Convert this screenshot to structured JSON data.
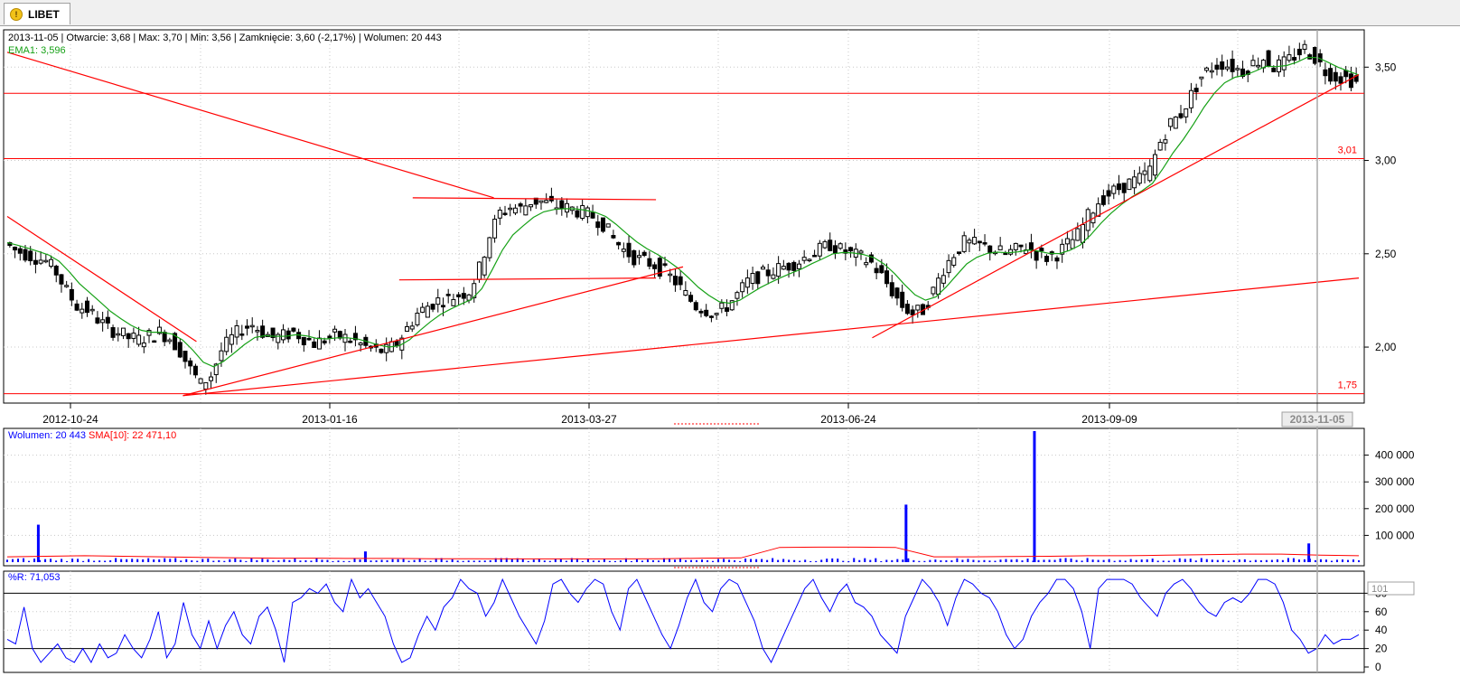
{
  "window": {
    "tab_label": "LIBET",
    "tab_icon": "warning-icon"
  },
  "info": {
    "ohlc_line": "2013-11-05 | Otwarcie: 3,68 | Max: 3,70 | Min: 3,56 | Zamknięcie: 3,60 (-2,17%)  | Wolumen: 20 443",
    "ema_line": "EMA1: 3,596",
    "volume_label": "Wolumen: 20 443",
    "sma_label": "SMA[10]: 22 471,10",
    "wr_label": "%R: 71,053"
  },
  "colors": {
    "candle": "#000000",
    "ema": "#16a116",
    "trendline": "#ff0000",
    "volume": "#0000ff",
    "sma": "#ff0000",
    "wr": "#0000ff",
    "grid": "#c8c8c8"
  },
  "chart_data": [
    {
      "type": "candlestick",
      "x_tick_labels": [
        "2012-10-24",
        "2013-01-16",
        "2013-03-27",
        "2013-06-24",
        "2013-09-09"
      ],
      "cursor_date_label": "2013-11-05",
      "y_tick_labels": [
        "3,50",
        "3,00",
        "2,50",
        "2,00"
      ],
      "ylim": [
        1.7,
        3.7
      ],
      "grid": true,
      "horizontal_levels": [
        {
          "value": 3.36,
          "label": ""
        },
        {
          "value": 3.01,
          "label": "3,01"
        },
        {
          "value": 1.75,
          "label": "1,75"
        }
      ],
      "price_series": [
        2.56,
        2.52,
        2.5,
        2.48,
        2.46,
        2.4,
        2.3,
        2.22,
        2.2,
        2.15,
        2.1,
        2.08,
        2.05,
        2.04,
        2.06,
        2.08,
        2.05,
        1.98,
        1.88,
        1.8,
        1.85,
        1.98,
        2.05,
        2.1,
        2.12,
        2.08,
        2.05,
        2.06,
        2.08,
        2.05,
        2.02,
        2.04,
        2.06,
        2.05,
        2.03,
        2.0,
        1.98,
        1.98,
        2.02,
        2.1,
        2.18,
        2.22,
        2.25,
        2.26,
        2.28,
        2.3,
        2.42,
        2.6,
        2.72,
        2.75,
        2.74,
        2.78,
        2.78,
        2.76,
        2.75,
        2.74,
        2.72,
        2.7,
        2.66,
        2.58,
        2.52,
        2.48,
        2.46,
        2.44,
        2.4,
        2.35,
        2.28,
        2.22,
        2.2,
        2.18,
        2.22,
        2.28,
        2.35,
        2.38,
        2.4,
        2.42,
        2.44,
        2.46,
        2.5,
        2.52,
        2.55,
        2.52,
        2.5,
        2.48,
        2.45,
        2.38,
        2.3,
        2.22,
        2.18,
        2.2,
        2.3,
        2.42,
        2.5,
        2.56,
        2.55,
        2.54,
        2.52,
        2.5,
        2.52,
        2.54,
        2.5,
        2.48,
        2.5,
        2.55,
        2.6,
        2.7,
        2.78,
        2.82,
        2.85,
        2.88,
        2.9,
        2.95,
        3.1,
        3.2,
        3.25,
        3.35,
        3.45,
        3.5,
        3.52,
        3.5,
        3.48,
        3.52,
        3.55,
        3.5,
        3.52,
        3.56,
        3.6,
        3.55,
        3.48,
        3.45,
        3.44,
        3.42
      ],
      "ema_label_value": 3.596,
      "trendlines": [
        {
          "from": [
            0.0,
            3.58
          ],
          "to": [
            0.36,
            2.8
          ]
        },
        {
          "from": [
            0.0,
            2.7
          ],
          "to": [
            0.14,
            2.03
          ]
        },
        {
          "from": [
            0.13,
            1.74
          ],
          "to": [
            0.5,
            2.43
          ]
        },
        {
          "from": [
            0.13,
            1.74
          ],
          "to": [
            1.0,
            2.37
          ]
        },
        {
          "from": [
            0.3,
            2.8
          ],
          "to": [
            0.48,
            2.79
          ]
        },
        {
          "from": [
            0.29,
            2.36
          ],
          "to": [
            0.48,
            2.37
          ]
        },
        {
          "from": [
            0.64,
            2.05
          ],
          "to": [
            1.0,
            3.46
          ]
        }
      ]
    },
    {
      "type": "bar",
      "title": "Wolumen: 20 443",
      "y_tick_labels": [
        "400 000",
        "300 000",
        "200 000",
        "100 000"
      ],
      "ylim": [
        0,
        500000
      ],
      "spikes": [
        {
          "pos": 0.023,
          "value": 140000
        },
        {
          "pos": 0.265,
          "value": 40000
        },
        {
          "pos": 0.665,
          "value": 215000
        },
        {
          "pos": 0.76,
          "value": 490000
        },
        {
          "pos": 0.963,
          "value": 70000
        }
      ],
      "baseline_volume": 12000,
      "sma_series": [
        20000,
        22000,
        24000,
        22000,
        20000,
        18000,
        16000,
        15000,
        15000,
        14000,
        14000,
        13000,
        13000,
        12000,
        12000,
        12000,
        12000,
        13000,
        15000,
        16000,
        55000,
        56000,
        56000,
        55000,
        20000,
        20000,
        21000,
        22000,
        24000,
        24000,
        26000,
        28000,
        30000,
        30000,
        26000,
        24000
      ],
      "sma_label": "SMA[10]: 22 471,10"
    },
    {
      "type": "line",
      "title": "%R: 71,053",
      "y_tick_labels": [
        "80",
        "60",
        "40",
        "20",
        "0"
      ],
      "boxed_label": "101",
      "ylim": [
        0,
        100
      ],
      "reference_lines": [
        80,
        20
      ],
      "values": [
        30,
        25,
        65,
        20,
        5,
        15,
        25,
        10,
        5,
        20,
        5,
        25,
        10,
        15,
        35,
        20,
        10,
        30,
        60,
        10,
        25,
        70,
        35,
        20,
        50,
        20,
        45,
        60,
        35,
        25,
        55,
        65,
        40,
        5,
        70,
        75,
        85,
        80,
        90,
        70,
        60,
        95,
        75,
        85,
        70,
        55,
        25,
        5,
        10,
        35,
        55,
        40,
        65,
        75,
        95,
        85,
        80,
        55,
        70,
        95,
        75,
        55,
        40,
        25,
        50,
        90,
        95,
        80,
        70,
        85,
        95,
        90,
        60,
        40,
        85,
        95,
        75,
        55,
        35,
        20,
        45,
        75,
        95,
        70,
        60,
        85,
        95,
        90,
        70,
        50,
        20,
        5,
        25,
        45,
        65,
        85,
        95,
        75,
        60,
        80,
        90,
        70,
        65,
        55,
        35,
        25,
        15,
        55,
        75,
        95,
        85,
        70,
        45,
        75,
        95,
        90,
        80,
        75,
        60,
        35,
        20,
        30,
        55,
        70,
        80,
        95,
        95,
        85,
        60,
        20,
        85,
        95,
        95,
        95,
        90,
        75,
        65,
        55,
        80,
        90,
        95,
        85,
        70,
        60,
        55,
        70,
        75,
        70,
        80,
        95,
        95,
        90,
        70,
        40,
        30,
        15,
        20,
        35,
        25,
        30,
        30,
        35
      ]
    }
  ]
}
